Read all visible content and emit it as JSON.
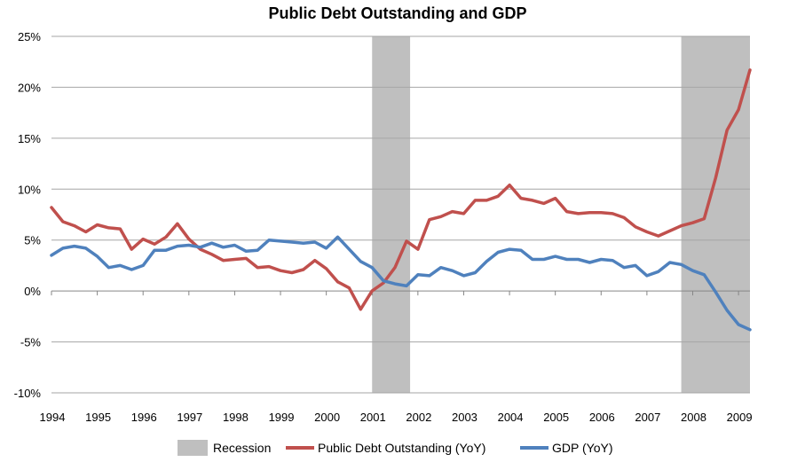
{
  "chart_data": {
    "type": "line",
    "title": "Public Debt Outstanding and GDP",
    "xlabel": "",
    "ylabel": "",
    "xlim": [
      1994,
      2009.25
    ],
    "ylim": [
      -10,
      25
    ],
    "yticks": [
      -10,
      -5,
      0,
      5,
      10,
      15,
      20,
      25
    ],
    "ytick_labels": [
      "-10%",
      "-5%",
      "0%",
      "5%",
      "10%",
      "15%",
      "20%",
      "25%"
    ],
    "xticks": [
      1994,
      1995,
      1996,
      1997,
      1998,
      1999,
      2000,
      2001,
      2002,
      2003,
      2004,
      2005,
      2006,
      2007,
      2008,
      2009
    ],
    "xtick_labels": [
      "1994",
      "1995",
      "1996",
      "1997",
      "1998",
      "1999",
      "2000",
      "2001",
      "2002",
      "2003",
      "2004",
      "2005",
      "2006",
      "2007",
      "2008",
      "2009"
    ],
    "grid": "horizontal",
    "legend_position": "bottom",
    "recessions": [
      {
        "start": 2001.0,
        "end": 2001.83
      },
      {
        "start": 2007.75,
        "end": 2009.25
      }
    ],
    "series": [
      {
        "name": "Public Debt Outstanding (YoY)",
        "color": "#c0504d",
        "x": [
          1994.0,
          1994.25,
          1994.5,
          1994.75,
          1995.0,
          1995.25,
          1995.5,
          1995.75,
          1996.0,
          1996.25,
          1996.5,
          1996.75,
          1997.0,
          1997.25,
          1997.5,
          1997.75,
          1998.0,
          1998.25,
          1998.5,
          1998.75,
          1999.0,
          1999.25,
          1999.5,
          1999.75,
          2000.0,
          2000.25,
          2000.5,
          2000.75,
          2001.0,
          2001.25,
          2001.5,
          2001.75,
          2002.0,
          2002.25,
          2002.5,
          2002.75,
          2003.0,
          2003.25,
          2003.5,
          2003.75,
          2004.0,
          2004.25,
          2004.5,
          2004.75,
          2005.0,
          2005.25,
          2005.5,
          2005.75,
          2006.0,
          2006.25,
          2006.5,
          2006.75,
          2007.0,
          2007.25,
          2007.5,
          2007.75,
          2008.0,
          2008.25,
          2008.5,
          2008.75,
          2009.0,
          2009.25
        ],
        "y": [
          8.2,
          6.8,
          6.4,
          5.8,
          6.5,
          6.2,
          6.1,
          4.1,
          5.1,
          4.6,
          5.3,
          6.6,
          5.1,
          4.1,
          3.6,
          3.0,
          3.1,
          3.2,
          2.3,
          2.4,
          2.0,
          1.8,
          2.1,
          3.0,
          2.2,
          0.9,
          0.3,
          -1.8,
          0.0,
          0.8,
          2.3,
          4.9,
          4.1,
          7.0,
          7.3,
          7.8,
          7.6,
          8.9,
          8.9,
          9.3,
          10.4,
          9.1,
          8.9,
          8.6,
          9.1,
          7.8,
          7.6,
          7.7,
          7.7,
          7.6,
          7.2,
          6.3,
          5.8,
          5.4,
          5.9,
          6.4,
          6.7,
          7.1,
          11.1,
          15.8,
          17.8,
          21.7
        ]
      },
      {
        "name": "GDP (YoY)",
        "color": "#4f81bd",
        "x": [
          1994.0,
          1994.25,
          1994.5,
          1994.75,
          1995.0,
          1995.25,
          1995.5,
          1995.75,
          1996.0,
          1996.25,
          1996.5,
          1996.75,
          1997.0,
          1997.25,
          1997.5,
          1997.75,
          1998.0,
          1998.25,
          1998.5,
          1998.75,
          1999.0,
          1999.25,
          1999.5,
          1999.75,
          2000.0,
          2000.25,
          2000.5,
          2000.75,
          2001.0,
          2001.25,
          2001.5,
          2001.75,
          2002.0,
          2002.25,
          2002.5,
          2002.75,
          2003.0,
          2003.25,
          2003.5,
          2003.75,
          2004.0,
          2004.25,
          2004.5,
          2004.75,
          2005.0,
          2005.25,
          2005.5,
          2005.75,
          2006.0,
          2006.25,
          2006.5,
          2006.75,
          2007.0,
          2007.25,
          2007.5,
          2007.75,
          2008.0,
          2008.25,
          2008.5,
          2008.75,
          2009.0,
          2009.25
        ],
        "y": [
          3.5,
          4.2,
          4.4,
          4.2,
          3.4,
          2.3,
          2.5,
          2.1,
          2.5,
          4.0,
          4.0,
          4.4,
          4.5,
          4.3,
          4.7,
          4.3,
          4.5,
          3.9,
          4.0,
          5.0,
          4.9,
          4.8,
          4.7,
          4.8,
          4.2,
          5.3,
          4.1,
          2.9,
          2.3,
          1.0,
          0.7,
          0.5,
          1.6,
          1.5,
          2.3,
          2.0,
          1.5,
          1.8,
          2.9,
          3.8,
          4.1,
          4.0,
          3.1,
          3.1,
          3.4,
          3.1,
          3.1,
          2.8,
          3.1,
          3.0,
          2.3,
          2.5,
          1.5,
          1.9,
          2.8,
          2.6,
          2.0,
          1.6,
          -0.1,
          -1.9,
          -3.3,
          -3.8
        ]
      }
    ]
  },
  "legend": {
    "recession_label": "Recession",
    "recession_color": "#bfbfbf"
  }
}
